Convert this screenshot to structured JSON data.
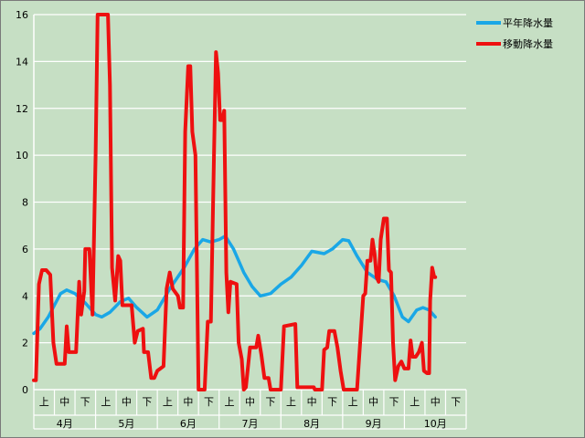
{
  "chart_data": {
    "type": "line",
    "ylim": [
      0,
      16
    ],
    "yticks": [
      0,
      2,
      4,
      6,
      8,
      10,
      12,
      14,
      16
    ],
    "months": [
      "4月",
      "5月",
      "6月",
      "7月",
      "8月",
      "9月",
      "10月"
    ],
    "dekads": [
      "上",
      "中",
      "下"
    ],
    "grid": true,
    "legend_position": "top-right",
    "series": [
      {
        "name": "平年降水量",
        "color": "#1aa7e6",
        "points": [
          [
            0.0,
            2.4
          ],
          [
            0.3,
            2.6
          ],
          [
            0.7,
            3.1
          ],
          [
            1.0,
            3.6
          ],
          [
            1.3,
            4.1
          ],
          [
            1.6,
            4.25
          ],
          [
            2.0,
            4.1
          ],
          [
            2.5,
            3.7
          ],
          [
            3.0,
            3.2
          ],
          [
            3.3,
            3.1
          ],
          [
            3.7,
            3.3
          ],
          [
            4.2,
            3.75
          ],
          [
            4.6,
            3.9
          ],
          [
            5.0,
            3.5
          ],
          [
            5.5,
            3.1
          ],
          [
            6.0,
            3.4
          ],
          [
            6.6,
            4.3
          ],
          [
            7.3,
            5.2
          ],
          [
            7.8,
            6.0
          ],
          [
            8.2,
            6.4
          ],
          [
            8.6,
            6.3
          ],
          [
            9.0,
            6.4
          ],
          [
            9.3,
            6.55
          ],
          [
            9.7,
            6.0
          ],
          [
            10.2,
            5.0
          ],
          [
            10.6,
            4.4
          ],
          [
            11.0,
            4.0
          ],
          [
            11.5,
            4.1
          ],
          [
            12.0,
            4.5
          ],
          [
            12.5,
            4.8
          ],
          [
            13.0,
            5.3
          ],
          [
            13.5,
            5.9
          ],
          [
            14.1,
            5.8
          ],
          [
            14.5,
            6.0
          ],
          [
            15.0,
            6.4
          ],
          [
            15.3,
            6.35
          ],
          [
            15.7,
            5.7
          ],
          [
            16.2,
            5.0
          ],
          [
            16.7,
            4.7
          ],
          [
            17.1,
            4.6
          ],
          [
            17.5,
            4.0
          ],
          [
            17.9,
            3.1
          ],
          [
            18.2,
            2.9
          ],
          [
            18.6,
            3.4
          ],
          [
            18.9,
            3.5
          ],
          [
            19.2,
            3.4
          ],
          [
            19.5,
            3.1
          ]
        ]
      },
      {
        "name": "移動降水量",
        "color": "#ee1010",
        "points": [
          [
            0.0,
            0.4
          ],
          [
            0.1,
            0.4
          ],
          [
            0.25,
            4.5
          ],
          [
            0.4,
            5.1
          ],
          [
            0.6,
            5.1
          ],
          [
            0.8,
            4.9
          ],
          [
            0.95,
            2.0
          ],
          [
            1.1,
            1.1
          ],
          [
            1.5,
            1.1
          ],
          [
            1.6,
            2.7
          ],
          [
            1.7,
            1.6
          ],
          [
            2.05,
            1.6
          ],
          [
            2.2,
            4.6
          ],
          [
            2.3,
            3.2
          ],
          [
            2.45,
            4.2
          ],
          [
            2.5,
            6.0
          ],
          [
            2.7,
            6.0
          ],
          [
            2.85,
            3.2
          ],
          [
            3.0,
            10.0
          ],
          [
            3.1,
            16.0
          ],
          [
            3.6,
            16.0
          ],
          [
            3.7,
            13.0
          ],
          [
            3.8,
            5.2
          ],
          [
            3.95,
            3.8
          ],
          [
            4.1,
            5.7
          ],
          [
            4.2,
            5.5
          ],
          [
            4.3,
            3.6
          ],
          [
            4.55,
            3.6
          ],
          [
            4.75,
            3.6
          ],
          [
            4.9,
            2.0
          ],
          [
            5.05,
            2.5
          ],
          [
            5.3,
            2.6
          ],
          [
            5.35,
            1.6
          ],
          [
            5.55,
            1.6
          ],
          [
            5.7,
            0.5
          ],
          [
            5.85,
            0.5
          ],
          [
            6.0,
            0.8
          ],
          [
            6.3,
            1.0
          ],
          [
            6.45,
            4.3
          ],
          [
            6.6,
            5.0
          ],
          [
            6.75,
            4.3
          ],
          [
            7.0,
            4.0
          ],
          [
            7.1,
            3.5
          ],
          [
            7.25,
            3.5
          ],
          [
            7.35,
            11.0
          ],
          [
            7.5,
            13.8
          ],
          [
            7.6,
            13.8
          ],
          [
            7.7,
            11.0
          ],
          [
            7.85,
            10.0
          ],
          [
            8.0,
            0.0
          ],
          [
            8.3,
            0.0
          ],
          [
            8.45,
            2.9
          ],
          [
            8.6,
            2.9
          ],
          [
            8.75,
            10.0
          ],
          [
            8.85,
            14.4
          ],
          [
            8.95,
            13.5
          ],
          [
            9.05,
            11.5
          ],
          [
            9.15,
            11.5
          ],
          [
            9.25,
            11.9
          ],
          [
            9.35,
            5.0
          ],
          [
            9.45,
            3.3
          ],
          [
            9.55,
            4.6
          ],
          [
            9.85,
            4.5
          ],
          [
            9.95,
            2.0
          ],
          [
            10.1,
            1.3
          ],
          [
            10.2,
            0.0
          ],
          [
            10.3,
            0.1
          ],
          [
            10.5,
            1.8
          ],
          [
            10.8,
            1.8
          ],
          [
            10.9,
            2.3
          ],
          [
            11.05,
            1.5
          ],
          [
            11.2,
            0.5
          ],
          [
            11.4,
            0.5
          ],
          [
            11.5,
            0.0
          ],
          [
            11.9,
            0.0
          ],
          [
            12.0,
            0.0
          ],
          [
            12.15,
            2.7
          ],
          [
            12.7,
            2.8
          ],
          [
            12.8,
            0.1
          ],
          [
            13.6,
            0.1
          ],
          [
            13.65,
            0.0
          ],
          [
            14.0,
            0.0
          ],
          [
            14.1,
            1.7
          ],
          [
            14.25,
            1.8
          ],
          [
            14.35,
            2.5
          ],
          [
            14.6,
            2.5
          ],
          [
            14.75,
            1.8
          ],
          [
            14.9,
            0.8
          ],
          [
            15.05,
            0.0
          ],
          [
            15.7,
            0.0
          ],
          [
            15.85,
            2.0
          ],
          [
            16.0,
            4.0
          ],
          [
            16.1,
            4.1
          ],
          [
            16.2,
            5.5
          ],
          [
            16.35,
            5.5
          ],
          [
            16.45,
            6.4
          ],
          [
            16.55,
            5.8
          ],
          [
            16.65,
            4.8
          ],
          [
            16.75,
            4.6
          ],
          [
            16.85,
            6.4
          ],
          [
            17.0,
            7.3
          ],
          [
            17.15,
            7.3
          ],
          [
            17.25,
            5.1
          ],
          [
            17.35,
            5.0
          ],
          [
            17.45,
            2.0
          ],
          [
            17.55,
            0.4
          ],
          [
            17.7,
            1.0
          ],
          [
            17.85,
            1.2
          ],
          [
            18.0,
            0.9
          ],
          [
            18.2,
            0.9
          ],
          [
            18.3,
            2.1
          ],
          [
            18.4,
            1.4
          ],
          [
            18.55,
            1.4
          ],
          [
            18.7,
            1.6
          ],
          [
            18.85,
            2.0
          ],
          [
            18.95,
            0.8
          ],
          [
            19.1,
            0.7
          ],
          [
            19.2,
            0.7
          ],
          [
            19.25,
            3.8
          ],
          [
            19.35,
            5.2
          ],
          [
            19.45,
            4.8
          ],
          [
            19.5,
            4.8
          ]
        ]
      }
    ]
  }
}
